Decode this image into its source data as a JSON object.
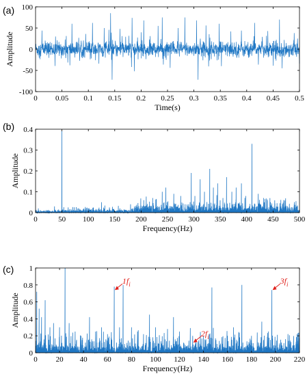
{
  "colors": {
    "signal": "#1f77c4",
    "annotation": "#e0201b",
    "axis": "#000000",
    "background": "#ffffff"
  },
  "chart_data": [
    {
      "panel": "(a)",
      "type": "line",
      "xlabel": "Time(s)",
      "ylabel": "Amplitude",
      "xlim": [
        0,
        0.5
      ],
      "ylim": [
        -100,
        100
      ],
      "xticks": [
        0,
        0.05,
        0.1,
        0.15,
        0.2,
        0.25,
        0.3,
        0.35,
        0.4,
        0.45,
        0.5
      ],
      "xtick_labels": [
        "0",
        "0.05",
        "0.1",
        "0.15",
        "0.2",
        "0.25",
        "0.3",
        "0.35",
        "0.4",
        "0.45",
        "0.5"
      ],
      "yticks": [
        -100,
        -50,
        0,
        50,
        100
      ],
      "ytick_labels": [
        "-100",
        "-50",
        "0",
        "50",
        "100"
      ],
      "grid": false,
      "noise_std": 9,
      "impulses": [
        [
          0.012,
          44
        ],
        [
          0.038,
          30
        ],
        [
          0.065,
          -38
        ],
        [
          0.069,
          60
        ],
        [
          0.095,
          36
        ],
        [
          0.108,
          62
        ],
        [
          0.12,
          -34
        ],
        [
          0.13,
          50
        ],
        [
          0.142,
          85
        ],
        [
          0.145,
          -72
        ],
        [
          0.16,
          48
        ],
        [
          0.183,
          74
        ],
        [
          0.187,
          -52
        ],
        [
          0.2,
          40
        ],
        [
          0.205,
          68
        ],
        [
          0.232,
          55
        ],
        [
          0.24,
          75
        ],
        [
          0.255,
          -44
        ],
        [
          0.27,
          50
        ],
        [
          0.283,
          75
        ],
        [
          0.305,
          68
        ],
        [
          0.308,
          -72
        ],
        [
          0.323,
          56
        ],
        [
          0.348,
          60
        ],
        [
          0.352,
          -40
        ],
        [
          0.37,
          42
        ],
        [
          0.39,
          44
        ],
        [
          0.415,
          62
        ],
        [
          0.44,
          43
        ],
        [
          0.462,
          70
        ],
        [
          0.467,
          -45
        ],
        [
          0.49,
          38
        ]
      ]
    },
    {
      "panel": "(b)",
      "type": "line",
      "xlabel": "Frequency(Hz)",
      "ylabel": "Amplitude",
      "xlim": [
        0,
        500
      ],
      "ylim": [
        0,
        0.4
      ],
      "xticks": [
        0,
        50,
        100,
        150,
        200,
        250,
        300,
        350,
        400,
        450,
        500
      ],
      "xtick_labels": [
        "0",
        "50",
        "100",
        "150",
        "200",
        "250",
        "300",
        "350",
        "400",
        "450",
        "500"
      ],
      "yticks": [
        0,
        0.1,
        0.2,
        0.3,
        0.4
      ],
      "ytick_labels": [
        "0",
        "0.1",
        "0.2",
        "0.3",
        "0.4"
      ],
      "grid": false,
      "peaks": [
        [
          50,
          0.39
        ],
        [
          36,
          0.03
        ],
        [
          62,
          0.025
        ],
        [
          125,
          0.05
        ],
        [
          180,
          0.04
        ],
        [
          205,
          0.06
        ],
        [
          222,
          0.07
        ],
        [
          240,
          0.1
        ],
        [
          247,
          0.12
        ],
        [
          262,
          0.09
        ],
        [
          275,
          0.08
        ],
        [
          295,
          0.19
        ],
        [
          302,
          0.08
        ],
        [
          312,
          0.16
        ],
        [
          320,
          0.1
        ],
        [
          330,
          0.21
        ],
        [
          337,
          0.12
        ],
        [
          345,
          0.14
        ],
        [
          355,
          0.07
        ],
        [
          362,
          0.17
        ],
        [
          372,
          0.1
        ],
        [
          380,
          0.12
        ],
        [
          390,
          0.14
        ],
        [
          398,
          0.08
        ],
        [
          410,
          0.33
        ],
        [
          422,
          0.09
        ],
        [
          432,
          0.07
        ],
        [
          445,
          0.05
        ],
        [
          470,
          0.06
        ],
        [
          490,
          0.04
        ]
      ]
    },
    {
      "panel": "(c)",
      "type": "line",
      "xlabel": "Frequency(Hz)",
      "ylabel": "Amplitude",
      "xlim": [
        0,
        220
      ],
      "ylim": [
        0,
        1
      ],
      "xticks": [
        0,
        20,
        40,
        60,
        80,
        100,
        120,
        140,
        160,
        180,
        200,
        220
      ],
      "xtick_labels": [
        "0",
        "20",
        "40",
        "60",
        "80",
        "100",
        "120",
        "140",
        "160",
        "180",
        "200",
        "220"
      ],
      "yticks": [
        0,
        0.2,
        0.4,
        0.6,
        0.8,
        1
      ],
      "ytick_labels": [
        "0",
        "0.2",
        "0.4",
        "0.6",
        "0.8",
        "1"
      ],
      "grid": false,
      "peaks": [
        [
          1,
          0.72
        ],
        [
          3,
          0.52
        ],
        [
          5,
          0.42
        ],
        [
          8,
          0.62
        ],
        [
          12,
          0.3
        ],
        [
          15,
          0.35
        ],
        [
          20,
          0.3
        ],
        [
          24.5,
          1.0
        ],
        [
          28,
          0.35
        ],
        [
          33,
          0.25
        ],
        [
          38,
          0.2
        ],
        [
          45,
          0.42
        ],
        [
          50,
          0.25
        ],
        [
          55,
          0.3
        ],
        [
          60,
          0.22
        ],
        [
          65.5,
          0.78
        ],
        [
          70,
          0.3
        ],
        [
          73,
          0.8
        ],
        [
          80,
          0.3
        ],
        [
          85,
          0.25
        ],
        [
          90,
          0.22
        ],
        [
          95,
          0.45
        ],
        [
          100,
          0.3
        ],
        [
          110,
          0.28
        ],
        [
          115,
          0.42
        ],
        [
          120,
          0.25
        ],
        [
          131,
          0.2
        ],
        [
          140,
          0.2
        ],
        [
          147,
          0.77
        ],
        [
          160,
          0.2
        ],
        [
          165,
          0.3
        ],
        [
          172,
          0.8
        ],
        [
          180,
          0.2
        ],
        [
          190,
          0.15
        ],
        [
          197,
          0.74
        ],
        [
          205,
          0.12
        ],
        [
          212,
          0.1
        ],
        [
          218,
          0.22
        ]
      ],
      "annotations": [
        {
          "label": "1f",
          "sub": "i",
          "x": 65.5,
          "y": 0.74
        },
        {
          "label": "2f",
          "sub": "i",
          "x": 131,
          "y": 0.12
        },
        {
          "label": "3f",
          "sub": "i",
          "x": 197,
          "y": 0.74
        }
      ]
    }
  ]
}
